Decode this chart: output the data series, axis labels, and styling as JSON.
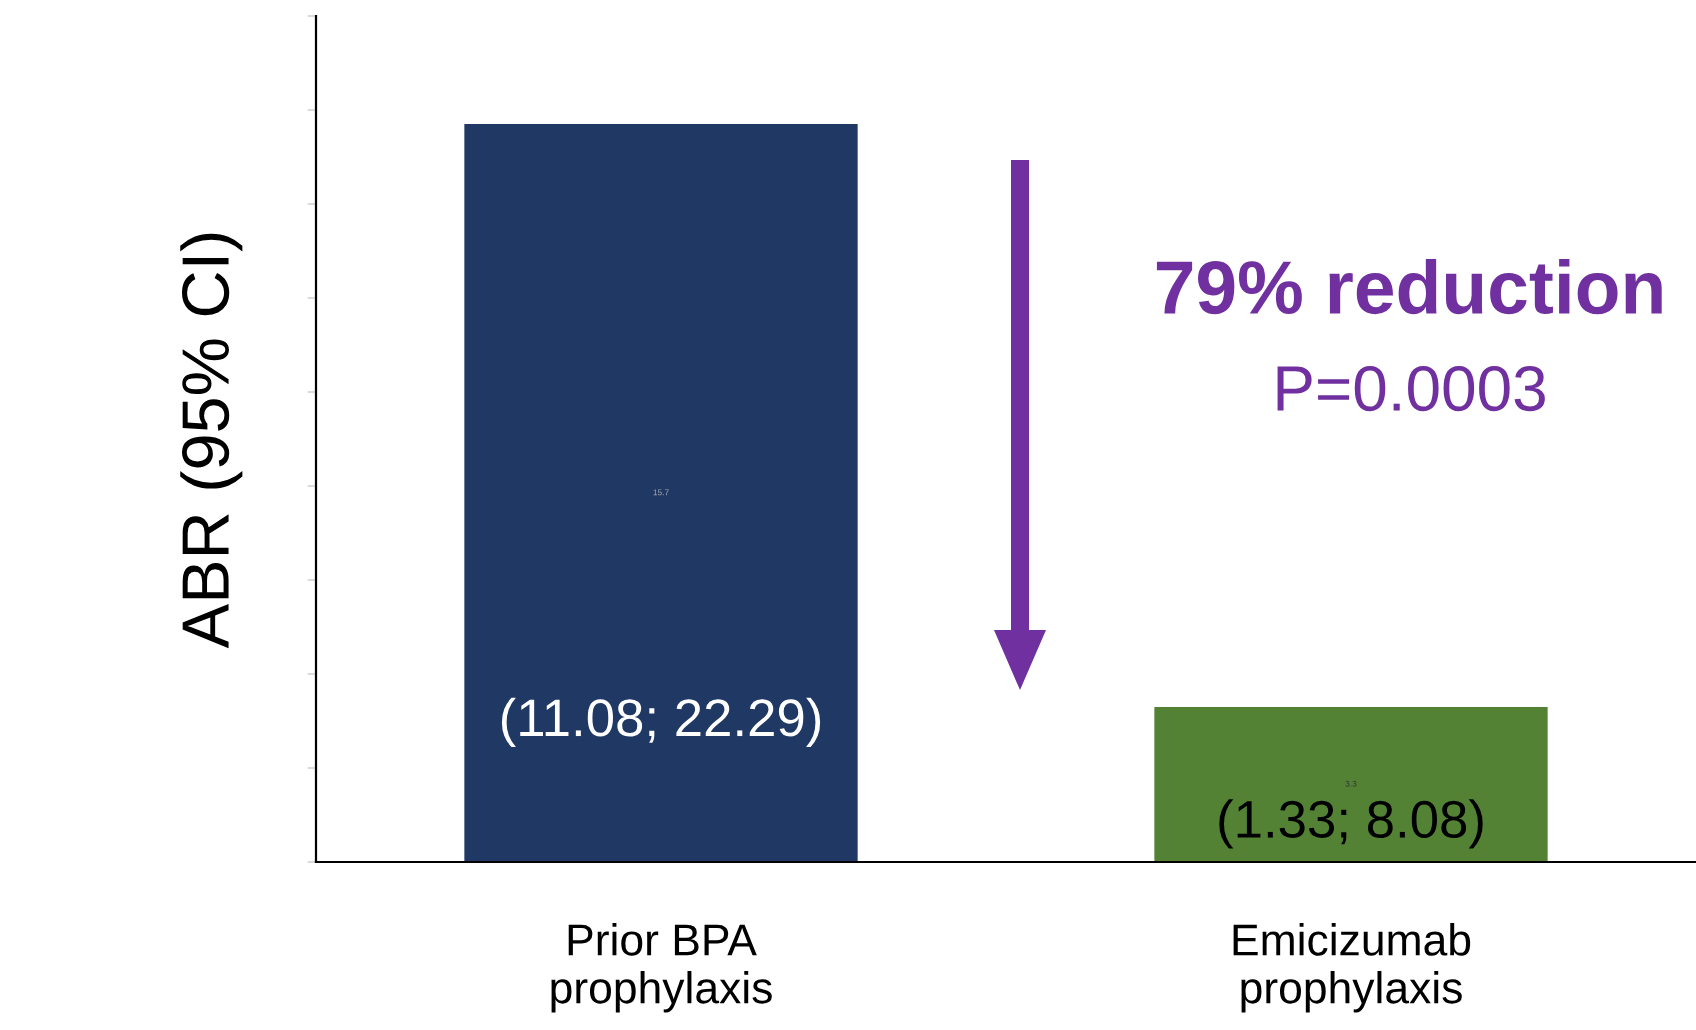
{
  "chart_data": {
    "type": "bar",
    "ylabel": "ABR (95% CI)",
    "categories": [
      "Prior BPA\nprophylaxis",
      "Emicizumab\nprophylaxis"
    ],
    "values": [
      15.7,
      3.3
    ],
    "colors": [
      "#203864",
      "#548235"
    ],
    "value_labels": [
      "15.7",
      "3.3"
    ],
    "ylim": [
      0,
      18
    ],
    "yticks": [
      {
        "value": 0,
        "label": null
      },
      {
        "value": 2,
        "label": null
      },
      {
        "value": 4,
        "label": null
      },
      {
        "value": 6,
        "label": null
      },
      {
        "value": 8,
        "label": null
      },
      {
        "value": 10,
        "label": null
      },
      {
        "value": 12,
        "label": null
      },
      {
        "value": 14,
        "label": null
      },
      {
        "value": 16,
        "label": null
      },
      {
        "value": 18,
        "label": null
      }
    ],
    "grid": false,
    "legend": false,
    "annotations": [
      "(11.08; 22.29)",
      "(1.33; 8.08)",
      "79% reduction",
      "P=0.0003"
    ]
  }
}
